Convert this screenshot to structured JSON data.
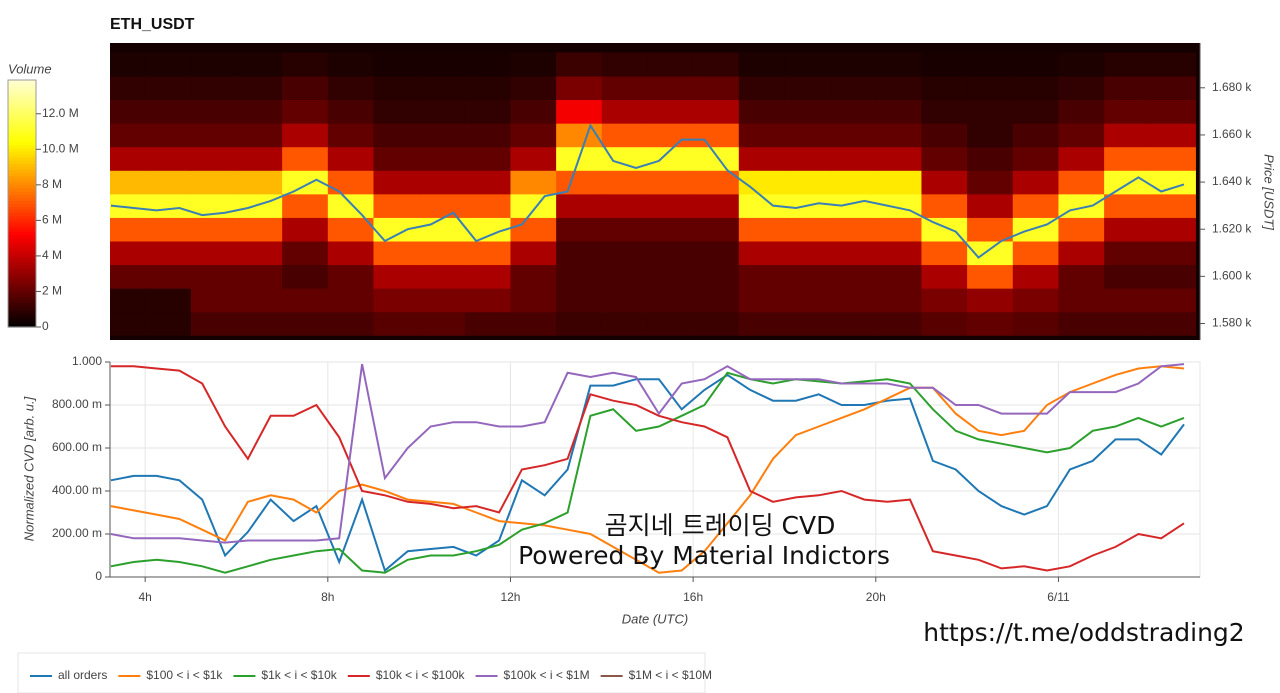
{
  "chart_data": [
    {
      "type": "heatmap",
      "title": "ETH_USDT",
      "ylabel": "Price [USDT]",
      "colorbar_title": "Volume",
      "xlim": [
        3.23,
        27.1
      ],
      "ylim": [
        1573,
        1699
      ],
      "yticks": [
        {
          "value": 1580,
          "label": "1.580 k"
        },
        {
          "value": 1600,
          "label": "1.600 k"
        },
        {
          "value": 1620,
          "label": "1.620 k"
        },
        {
          "value": 1640,
          "label": "1.640 k"
        },
        {
          "value": 1660,
          "label": "1.660 k"
        },
        {
          "value": 1680,
          "label": "1.680 k"
        }
      ],
      "zlim": [
        0,
        13.9
      ],
      "colorbar_ticks": [
        0,
        {
          "value": 2,
          "label": "2 M"
        },
        {
          "value": 4,
          "label": "4 M"
        },
        {
          "value": 6,
          "label": "6 M"
        },
        {
          "value": 8,
          "label": "8 M"
        },
        {
          "value": 10,
          "label": "10.0 M"
        },
        {
          "value": 12,
          "label": "12.0 M"
        }
      ],
      "xbins": [
        3,
        4,
        5,
        6,
        7,
        8,
        9,
        10,
        11,
        12,
        13,
        14,
        15,
        16,
        17,
        18,
        19,
        20,
        21,
        22,
        23,
        24,
        25,
        26,
        27
      ],
      "ybins": [
        1575,
        1585,
        1595,
        1605,
        1615,
        1625,
        1635,
        1645,
        1655,
        1665,
        1675,
        1685,
        1695
      ],
      "z": [
        [
          0.8,
          0.8,
          1.5,
          1.5,
          1.5,
          1.5,
          1.8,
          1.8,
          1.5,
          1.5,
          1.2,
          1.2,
          1.2,
          1.2,
          1.5,
          1.5,
          1.5,
          1.5,
          1.8,
          2,
          1.8,
          1.5,
          1.5,
          1.5
        ],
        [
          0.8,
          0.8,
          2,
          2,
          2,
          2,
          2.5,
          2.5,
          2.5,
          2,
          1.5,
          1.5,
          1.5,
          1.5,
          2,
          2,
          2,
          2,
          2.5,
          3,
          2.5,
          2,
          2,
          2
        ],
        [
          2,
          2,
          2,
          2,
          1.5,
          2,
          3.5,
          3.5,
          3.5,
          2,
          1.5,
          1.5,
          1.5,
          1.5,
          2,
          2,
          2,
          2,
          3.5,
          7,
          3.5,
          2,
          1.5,
          1.5
        ],
        [
          3.5,
          3.5,
          3.5,
          3.5,
          2,
          3.5,
          7,
          7,
          7,
          3.5,
          1.5,
          1.5,
          1.5,
          1.5,
          3.5,
          3.5,
          3.5,
          3.5,
          7,
          11,
          7,
          3.5,
          2,
          2
        ],
        [
          7,
          7,
          7,
          7,
          3.5,
          7,
          11,
          11,
          11,
          7,
          2,
          2,
          2,
          2,
          7,
          7,
          7,
          7,
          11,
          7,
          11,
          7,
          3.5,
          3.5
        ],
        [
          11,
          11,
          11,
          11,
          7,
          11,
          7,
          7,
          7,
          11,
          3.5,
          3.5,
          3.5,
          3.5,
          11,
          11,
          11,
          11,
          7,
          3.5,
          7,
          11,
          7,
          7
        ],
        [
          9,
          9,
          9,
          9,
          11,
          7,
          3.5,
          3.5,
          3.5,
          8,
          7,
          7,
          7,
          7,
          10,
          10,
          10,
          10,
          3.5,
          2,
          3.5,
          7,
          11,
          11
        ],
        [
          3.5,
          3.5,
          3.5,
          3.5,
          7,
          3.5,
          2,
          2,
          2,
          3.5,
          11,
          11,
          11,
          11,
          3.5,
          3.5,
          3.5,
          3.5,
          2,
          1.5,
          2,
          3.5,
          7,
          7
        ],
        [
          2,
          2,
          2,
          2,
          3.5,
          2,
          1.5,
          1.5,
          1.5,
          2,
          8,
          7,
          7,
          7,
          2,
          2,
          2,
          2,
          1.5,
          1,
          1.5,
          2,
          3.5,
          3.5
        ],
        [
          1.5,
          1.5,
          1.5,
          1.5,
          2,
          1.5,
          1,
          1,
          1,
          1.5,
          5,
          3.5,
          3.5,
          3.5,
          1.5,
          1.5,
          1.5,
          1.5,
          1,
          1,
          1,
          1.5,
          2,
          2
        ],
        [
          1,
          1,
          1,
          1,
          1.5,
          1,
          0.8,
          0.8,
          0.8,
          1,
          2.5,
          2,
          2,
          2,
          1,
          1,
          1,
          1,
          0.8,
          0.8,
          0.8,
          1,
          1.5,
          1.5
        ],
        [
          0.6,
          0.6,
          0.6,
          0.6,
          0.8,
          0.6,
          0.5,
          0.5,
          0.5,
          0.6,
          1.2,
          1,
          1,
          1,
          0.6,
          0.6,
          0.6,
          0.6,
          0.5,
          0.5,
          0.5,
          0.6,
          0.8,
          0.8
        ]
      ],
      "line": {
        "color": "#3a7fb5",
        "x": [
          3.25,
          3.75,
          4.25,
          4.75,
          5.25,
          5.75,
          6.25,
          6.75,
          7.25,
          7.75,
          8.25,
          8.75,
          9.25,
          9.75,
          10.25,
          10.75,
          11.25,
          11.75,
          12.25,
          12.75,
          13.25,
          13.75,
          14.25,
          14.75,
          15.25,
          15.75,
          16.25,
          16.75,
          17.25,
          17.75,
          18.25,
          18.75,
          19.25,
          19.75,
          20.25,
          20.75,
          21.25,
          21.75,
          22.25,
          22.75,
          23.25,
          23.75,
          24.25,
          24.75,
          25.25,
          25.75,
          26.25,
          26.75
        ],
        "values": [
          1630,
          1629,
          1628,
          1629,
          1626,
          1627,
          1629,
          1632,
          1636,
          1641,
          1636,
          1626,
          1615,
          1620,
          1622,
          1627,
          1615,
          1619,
          1622,
          1634,
          1636,
          1664,
          1649,
          1646,
          1649,
          1658,
          1658,
          1645,
          1638,
          1630,
          1629,
          1631,
          1630,
          1632,
          1630,
          1628,
          1623,
          1619,
          1608,
          1615,
          1619,
          1622,
          1628,
          1630,
          1636,
          1642,
          1636,
          1639
        ]
      }
    },
    {
      "type": "line",
      "xlabel": "Date (UTC)",
      "ylabel": "Normalized CVD [arb. u.]",
      "grid": true,
      "legend": "bottom-left",
      "xlim": [
        3.23,
        27.1
      ],
      "ylim": [
        0,
        1
      ],
      "xticks": [
        {
          "value": 4,
          "label": "4h"
        },
        {
          "value": 8,
          "label": "8h"
        },
        {
          "value": 12,
          "label": "12h"
        },
        {
          "value": 16,
          "label": "16h"
        },
        {
          "value": 20,
          "label": "20h"
        },
        {
          "value": 24,
          "label": "6/11"
        }
      ],
      "yticks": [
        0,
        {
          "value": 0.2,
          "label": "200.00 m"
        },
        {
          "value": 0.4,
          "label": "400.00 m"
        },
        {
          "value": 0.6,
          "label": "600.00 m"
        },
        {
          "value": 0.8,
          "label": "800.00 m"
        },
        {
          "value": 1,
          "label": "1.000"
        }
      ],
      "annotations": [
        "곰지네 트레이딩 CVD",
        "Powered By Material Indictors",
        "https://t.me/oddstrading2"
      ],
      "x": [
        3.25,
        3.75,
        4.25,
        4.75,
        5.25,
        5.75,
        6.25,
        6.75,
        7.25,
        7.75,
        8.25,
        8.75,
        9.25,
        9.75,
        10.25,
        10.75,
        11.25,
        11.75,
        12.25,
        12.75,
        13.25,
        13.75,
        14.25,
        14.75,
        15.25,
        15.75,
        16.25,
        16.75,
        17.25,
        17.75,
        18.25,
        18.75,
        19.25,
        19.75,
        20.25,
        20.75,
        21.25,
        21.75,
        22.25,
        22.75,
        23.25,
        23.75,
        24.25,
        24.75,
        25.25,
        25.75,
        26.25,
        26.75
      ],
      "series": [
        {
          "name": "all orders",
          "color": "#1f77b4",
          "values": [
            0.45,
            0.47,
            0.47,
            0.45,
            0.36,
            0.1,
            0.21,
            0.36,
            0.26,
            0.33,
            0.07,
            0.36,
            0.03,
            0.12,
            0.13,
            0.14,
            0.1,
            0.17,
            0.45,
            0.38,
            0.5,
            0.89,
            0.89,
            0.92,
            0.92,
            0.78,
            0.87,
            0.94,
            0.87,
            0.82,
            0.82,
            0.85,
            0.8,
            0.8,
            0.82,
            0.83,
            0.54,
            0.5,
            0.4,
            0.33,
            0.29,
            0.33,
            0.5,
            0.54,
            0.64,
            0.64,
            0.57,
            0.71
          ]
        },
        {
          "name": "$100 < i < $1k",
          "color": "#ff7f0e",
          "values": [
            0.33,
            0.31,
            0.29,
            0.27,
            0.22,
            0.17,
            0.35,
            0.38,
            0.36,
            0.3,
            0.4,
            0.43,
            0.4,
            0.36,
            0.35,
            0.34,
            0.3,
            0.26,
            0.25,
            0.24,
            0.22,
            0.2,
            0.14,
            0.08,
            0.02,
            0.03,
            0.12,
            0.25,
            0.38,
            0.55,
            0.66,
            0.7,
            0.74,
            0.78,
            0.83,
            0.88,
            0.88,
            0.76,
            0.68,
            0.66,
            0.68,
            0.8,
            0.86,
            0.9,
            0.94,
            0.97,
            0.98,
            0.97
          ]
        },
        {
          "name": "$1k < i < $10k",
          "color": "#2ca02c",
          "values": [
            0.05,
            0.07,
            0.08,
            0.07,
            0.05,
            0.02,
            0.05,
            0.08,
            0.1,
            0.12,
            0.13,
            0.03,
            0.02,
            0.08,
            0.1,
            0.1,
            0.12,
            0.15,
            0.22,
            0.25,
            0.3,
            0.75,
            0.78,
            0.68,
            0.7,
            0.75,
            0.8,
            0.95,
            0.92,
            0.9,
            0.92,
            0.91,
            0.9,
            0.91,
            0.92,
            0.9,
            0.78,
            0.68,
            0.64,
            0.62,
            0.6,
            0.58,
            0.6,
            0.68,
            0.7,
            0.74,
            0.7,
            0.74
          ]
        },
        {
          "name": "$10k < i < $100k",
          "color": "#d62728",
          "values": [
            0.98,
            0.98,
            0.97,
            0.96,
            0.9,
            0.7,
            0.55,
            0.75,
            0.75,
            0.8,
            0.65,
            0.4,
            0.38,
            0.35,
            0.34,
            0.32,
            0.33,
            0.3,
            0.5,
            0.52,
            0.55,
            0.85,
            0.82,
            0.8,
            0.75,
            0.72,
            0.7,
            0.65,
            0.4,
            0.35,
            0.37,
            0.38,
            0.4,
            0.36,
            0.35,
            0.36,
            0.12,
            0.1,
            0.08,
            0.04,
            0.05,
            0.03,
            0.05,
            0.1,
            0.14,
            0.2,
            0.18,
            0.25
          ]
        },
        {
          "name": "$100k < i < $1M",
          "color": "#9467bd",
          "values": [
            0.2,
            0.18,
            0.18,
            0.18,
            0.17,
            0.16,
            0.17,
            0.17,
            0.17,
            0.17,
            0.18,
            0.99,
            0.46,
            0.6,
            0.7,
            0.72,
            0.72,
            0.7,
            0.7,
            0.72,
            0.95,
            0.93,
            0.95,
            0.93,
            0.76,
            0.9,
            0.92,
            0.98,
            0.92,
            0.92,
            0.92,
            0.92,
            0.9,
            0.9,
            0.9,
            0.88,
            0.88,
            0.8,
            0.8,
            0.76,
            0.76,
            0.76,
            0.86,
            0.86,
            0.86,
            0.9,
            0.98,
            0.99
          ]
        },
        {
          "name": "$1M < i < $10M",
          "color": "#8c564b",
          "values": [
            null,
            null,
            null,
            null,
            null,
            null,
            null,
            null,
            null,
            null,
            null,
            null,
            null,
            null,
            null,
            null,
            null,
            null,
            null,
            null,
            null,
            null,
            null,
            null,
            null,
            null,
            null,
            null,
            null,
            null,
            null,
            null,
            null,
            null,
            null,
            null,
            null,
            null,
            null,
            null,
            null,
            null,
            null,
            null,
            null,
            null,
            null,
            null
          ]
        }
      ]
    }
  ]
}
